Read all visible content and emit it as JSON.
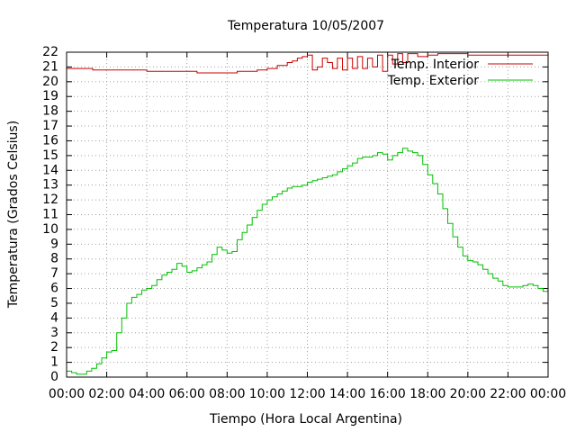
{
  "chart_data": {
    "type": "line",
    "title": "Temperatura 10/05/2007",
    "xlabel": "Tiempo (Hora Local Argentina)",
    "ylabel": "Temperatura (Grados Celsius)",
    "xlim": [
      0,
      24
    ],
    "ylim": [
      0,
      22
    ],
    "x_ticks": [
      "00:00",
      "02:00",
      "04:00",
      "06:00",
      "08:00",
      "10:00",
      "12:00",
      "14:00",
      "16:00",
      "18:00",
      "20:00",
      "22:00",
      "00:00"
    ],
    "y_ticks": [
      "0",
      "1",
      "2",
      "3",
      "4",
      "5",
      "6",
      "7",
      "8",
      "9",
      "10",
      "11",
      "12",
      "13",
      "14",
      "15",
      "16",
      "17",
      "18",
      "19",
      "20",
      "21",
      "22"
    ],
    "grid": true,
    "legend_position": "top-right",
    "series": [
      {
        "name": "Temp. Interior",
        "color": "#cc0000",
        "x": [
          0,
          1.25,
          1.3,
          2.5,
          3.75,
          4.0,
          4.5,
          5.5,
          6.25,
          6.5,
          7.0,
          7.5,
          8.0,
          8.5,
          9.0,
          9.5,
          10.0,
          10.5,
          11.0,
          11.25,
          11.5,
          11.75,
          12.0,
          12.15,
          12.25,
          12.5,
          12.75,
          13.0,
          13.25,
          13.5,
          13.75,
          14.0,
          14.25,
          14.5,
          14.75,
          15.0,
          15.25,
          15.5,
          15.75,
          16.0,
          16.25,
          16.5,
          16.75,
          17.0,
          17.5,
          18.0,
          18.5,
          19.0,
          19.5,
          20.0,
          21.0,
          22.0,
          23.0,
          24.0
        ],
        "y": [
          20.9,
          20.9,
          20.8,
          20.8,
          20.8,
          20.7,
          20.7,
          20.7,
          20.7,
          20.6,
          20.6,
          20.6,
          20.6,
          20.7,
          20.7,
          20.8,
          20.9,
          21.1,
          21.3,
          21.4,
          21.6,
          21.7,
          21.8,
          21.8,
          20.8,
          21.0,
          21.6,
          21.3,
          20.9,
          21.6,
          20.8,
          21.6,
          20.9,
          21.7,
          20.9,
          21.6,
          21.0,
          21.8,
          20.7,
          21.8,
          21.2,
          21.9,
          21.3,
          21.9,
          21.7,
          21.8,
          21.9,
          21.9,
          21.9,
          21.8,
          21.8,
          21.8,
          21.8,
          21.8
        ]
      },
      {
        "name": "Temp. Exterior",
        "color": "#00c000",
        "x": [
          0,
          0.25,
          0.5,
          0.75,
          1.0,
          1.25,
          1.5,
          1.75,
          2.0,
          2.25,
          2.5,
          2.75,
          3.0,
          3.25,
          3.5,
          3.75,
          4.0,
          4.25,
          4.5,
          4.75,
          5.0,
          5.25,
          5.5,
          5.75,
          6.0,
          6.25,
          6.5,
          6.75,
          7.0,
          7.25,
          7.5,
          7.75,
          8.0,
          8.25,
          8.5,
          8.75,
          9.0,
          9.25,
          9.5,
          9.75,
          10.0,
          10.25,
          10.5,
          10.75,
          11.0,
          11.25,
          11.5,
          11.75,
          12.0,
          12.25,
          12.5,
          12.75,
          13.0,
          13.25,
          13.5,
          13.75,
          14.0,
          14.25,
          14.5,
          14.75,
          15.0,
          15.25,
          15.5,
          15.75,
          16.0,
          16.25,
          16.5,
          16.75,
          17.0,
          17.25,
          17.5,
          17.75,
          18.0,
          18.25,
          18.5,
          18.75,
          19.0,
          19.25,
          19.5,
          19.75,
          20.0,
          20.25,
          20.5,
          20.75,
          21.0,
          21.25,
          21.5,
          21.75,
          22.0,
          22.25,
          22.5,
          22.75,
          23.0,
          23.25,
          23.5,
          23.75,
          24.0
        ],
        "y": [
          0.4,
          0.3,
          0.2,
          0.2,
          0.4,
          0.6,
          0.9,
          1.3,
          1.7,
          1.8,
          3.0,
          4.0,
          5.0,
          5.4,
          5.6,
          5.9,
          6.0,
          6.2,
          6.6,
          6.9,
          7.1,
          7.3,
          7.7,
          7.5,
          7.1,
          7.2,
          7.4,
          7.6,
          7.8,
          8.3,
          8.8,
          8.6,
          8.4,
          8.5,
          9.3,
          9.8,
          10.3,
          10.8,
          11.3,
          11.7,
          12.0,
          12.2,
          12.4,
          12.6,
          12.8,
          12.9,
          12.9,
          13.0,
          13.2,
          13.3,
          13.4,
          13.5,
          13.6,
          13.7,
          13.9,
          14.1,
          14.3,
          14.5,
          14.8,
          14.9,
          14.9,
          15.0,
          15.2,
          15.1,
          14.7,
          15.0,
          15.2,
          15.5,
          15.3,
          15.2,
          15.0,
          14.4,
          13.7,
          13.1,
          12.4,
          11.4,
          10.4,
          9.5,
          8.8,
          8.2,
          7.9,
          7.8,
          7.6,
          7.3,
          7.0,
          6.7,
          6.5,
          6.2,
          6.1,
          6.1,
          6.1,
          6.2,
          6.3,
          6.2,
          6.0,
          5.8,
          5.5
        ]
      }
    ]
  }
}
